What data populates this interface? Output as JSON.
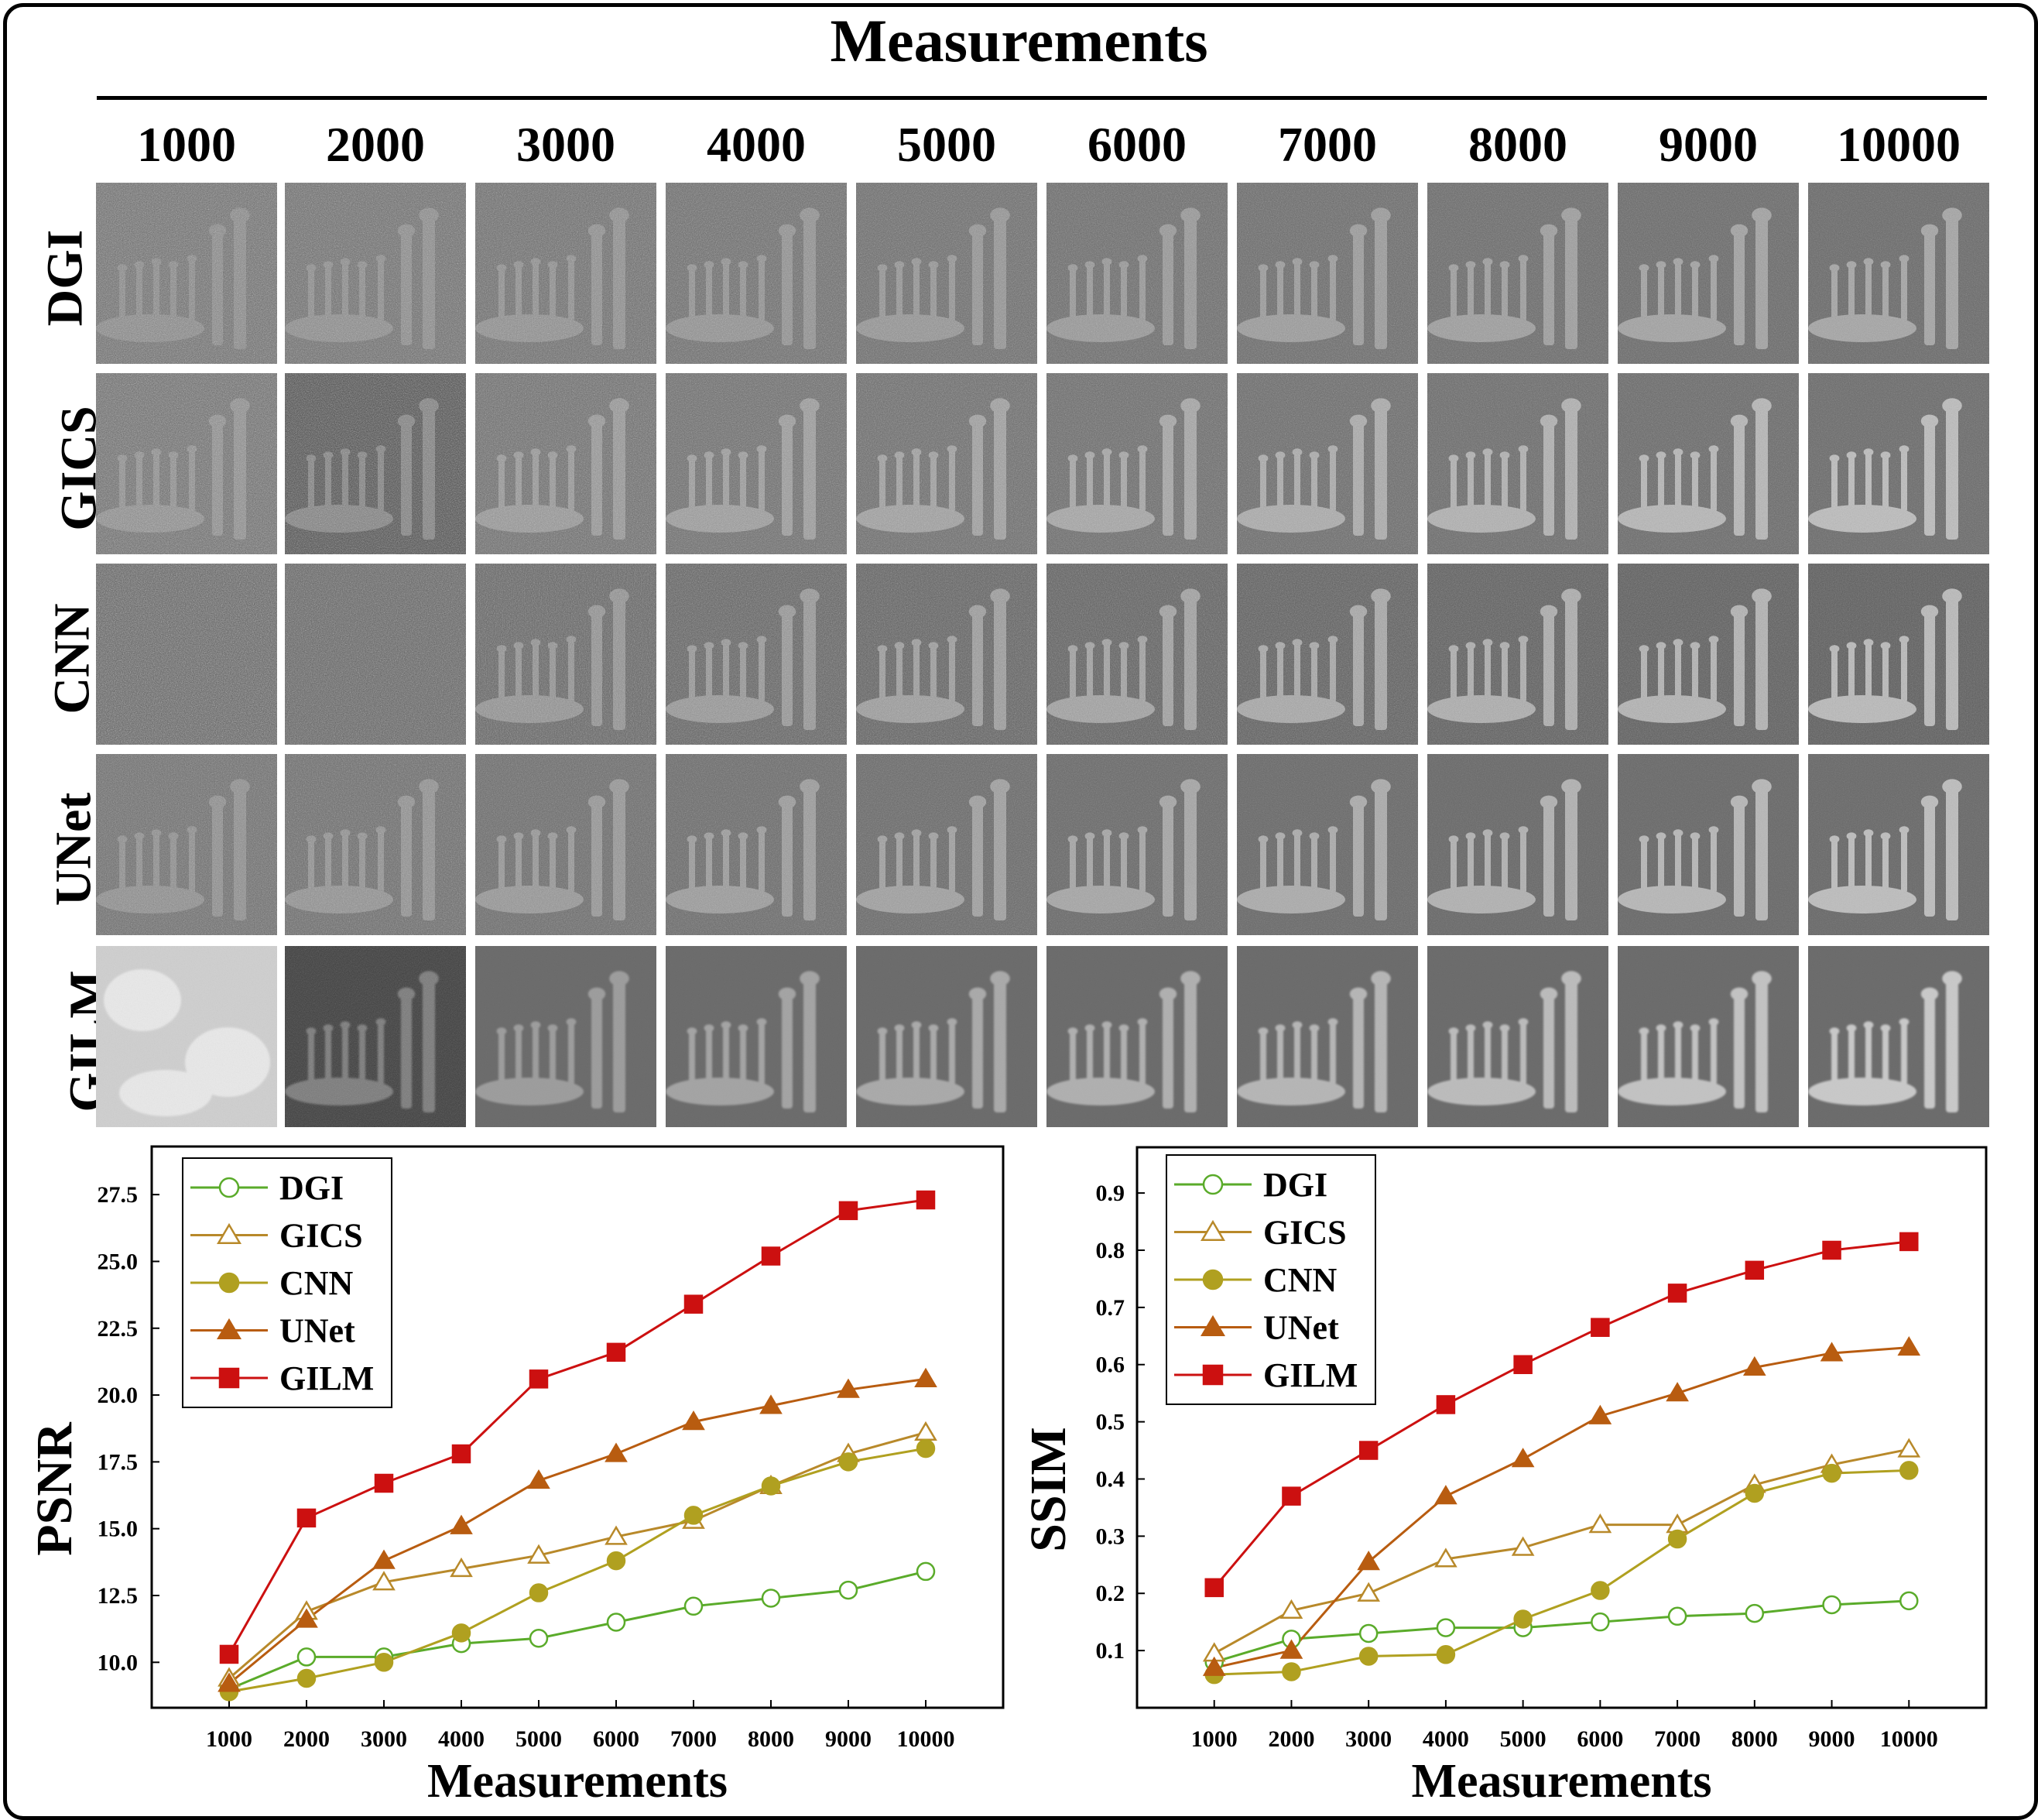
{
  "figure": {
    "title": "Measurements",
    "columns": [
      "1000",
      "2000",
      "3000",
      "4000",
      "5000",
      "6000",
      "7000",
      "8000",
      "9000",
      "10000"
    ],
    "rows": [
      "DGI",
      "GICS",
      "CNN",
      "UNet",
      "GILM"
    ]
  },
  "chart_data": [
    {
      "type": "line",
      "ylabel": "PSNR",
      "xlabel": "Measurements",
      "x": [
        1000,
        2000,
        3000,
        4000,
        5000,
        6000,
        7000,
        8000,
        9000,
        10000
      ],
      "xticks": [
        "1000",
        "2000",
        "3000",
        "4000",
        "5000",
        "6000",
        "7000",
        "8000",
        "9000",
        "10000"
      ],
      "yticks": [
        "10.0",
        "12.5",
        "15.0",
        "17.5",
        "20.0",
        "22.5",
        "25.0",
        "27.5"
      ],
      "ylim": [
        8.3,
        29.3
      ],
      "xlim": [
        0,
        11000
      ],
      "legend_position": "top-left",
      "series": [
        {
          "name": "DGI",
          "color": "#5aab2a",
          "marker": "circle-open",
          "values": [
            9.0,
            10.2,
            10.2,
            10.7,
            10.9,
            11.5,
            12.1,
            12.4,
            12.7,
            13.4
          ]
        },
        {
          "name": "GICS",
          "color": "#b8892a",
          "marker": "triangle-open",
          "values": [
            9.4,
            11.9,
            13.0,
            13.5,
            14.0,
            14.7,
            15.3,
            16.6,
            17.8,
            18.6
          ]
        },
        {
          "name": "CNN",
          "color": "#b0a020",
          "marker": "circle-filled",
          "values": [
            8.9,
            9.4,
            10.0,
            11.1,
            12.6,
            13.8,
            15.5,
            16.6,
            17.5,
            18.0
          ]
        },
        {
          "name": "UNet",
          "color": "#b85c10",
          "marker": "triangle-filled",
          "values": [
            9.2,
            11.6,
            13.8,
            15.1,
            16.8,
            17.8,
            19.0,
            19.6,
            20.2,
            20.6
          ]
        },
        {
          "name": "GILM",
          "color": "#cc1010",
          "marker": "square-filled",
          "values": [
            10.3,
            15.4,
            16.7,
            17.8,
            20.6,
            21.6,
            23.4,
            25.2,
            26.9,
            27.3
          ]
        }
      ]
    },
    {
      "type": "line",
      "ylabel": "SSIM",
      "xlabel": "Measurements",
      "x": [
        1000,
        2000,
        3000,
        4000,
        5000,
        6000,
        7000,
        8000,
        9000,
        10000
      ],
      "xticks": [
        "1000",
        "2000",
        "3000",
        "4000",
        "5000",
        "6000",
        "7000",
        "8000",
        "9000",
        "10000"
      ],
      "yticks": [
        "0.1",
        "0.2",
        "0.3",
        "0.4",
        "0.5",
        "0.6",
        "0.7",
        "0.8",
        "0.9"
      ],
      "ylim": [
        0.0,
        0.98
      ],
      "xlim": [
        0,
        11000
      ],
      "legend_position": "top-left",
      "series": [
        {
          "name": "DGI",
          "color": "#5aab2a",
          "marker": "circle-open",
          "values": [
            0.08,
            0.12,
            0.13,
            0.14,
            0.14,
            0.15,
            0.16,
            0.165,
            0.18,
            0.187
          ]
        },
        {
          "name": "GICS",
          "color": "#b8892a",
          "marker": "triangle-open",
          "values": [
            0.095,
            0.17,
            0.2,
            0.26,
            0.28,
            0.32,
            0.32,
            0.39,
            0.425,
            0.452
          ]
        },
        {
          "name": "CNN",
          "color": "#b0a020",
          "marker": "circle-filled",
          "values": [
            0.058,
            0.063,
            0.09,
            0.093,
            0.155,
            0.205,
            0.295,
            0.375,
            0.41,
            0.415
          ]
        },
        {
          "name": "UNet",
          "color": "#b85c10",
          "marker": "triangle-filled",
          "values": [
            0.07,
            0.1,
            0.255,
            0.37,
            0.435,
            0.51,
            0.55,
            0.595,
            0.62,
            0.63
          ]
        },
        {
          "name": "GILM",
          "color": "#cc1010",
          "marker": "square-filled",
          "values": [
            0.21,
            0.37,
            0.45,
            0.53,
            0.6,
            0.665,
            0.725,
            0.765,
            0.8,
            0.815
          ]
        }
      ]
    }
  ]
}
